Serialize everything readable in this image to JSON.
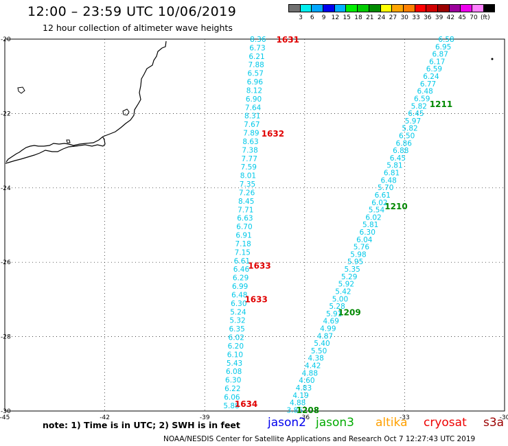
{
  "header": {
    "title": "12:00 – 23:59 UTC 10/06/2019",
    "subtitle": "12 hour collection of altimeter wave heights"
  },
  "color_scale": {
    "colors": [
      "#707070",
      "#00eeee",
      "#00a6ff",
      "#0000ee",
      "#00b0ff",
      "#00ee00",
      "#00cc00",
      "#008b00",
      "#ffff00",
      "#ffa500",
      "#ff8000",
      "#ff0000",
      "#d00000",
      "#9b0000",
      "#9b009b",
      "#ee00ee",
      "#ff80ff",
      "#000000"
    ],
    "labels": [
      "3",
      "6",
      "9",
      "12",
      "15",
      "18",
      "21",
      "24",
      "27",
      "30",
      "33",
      "36",
      "39",
      "42",
      "45",
      "70",
      "(ft)"
    ]
  },
  "axes": {
    "x_ticks": [
      "-45",
      "-42",
      "-39",
      "-36",
      "-33",
      "-30"
    ],
    "y_ticks": [
      "-20",
      "-22",
      "-24",
      "-26",
      "-28",
      "-30"
    ],
    "lon_range": [
      -45,
      -30
    ],
    "lat_range": [
      -30,
      -20
    ]
  },
  "tracks": {
    "west": {
      "color": "#00c8e8",
      "values": [
        "8.36",
        "6.73",
        "6.21",
        "7.88",
        "6.57",
        "6.96",
        "8.12",
        "6.90",
        "7.64",
        "8.31",
        "7.67",
        "7.89",
        "8.63",
        "7.38",
        "7.77",
        "7.59",
        "8.01",
        "7.35",
        "7.26",
        "8.45",
        "7.71",
        "6.63",
        "6.70",
        "6.91",
        "7.18",
        "7.15",
        "6.61",
        "6.46",
        "6.29",
        "6.99",
        "6.48",
        "6.30",
        "5.24",
        "5.32",
        "6.35",
        "6.02",
        "6.20",
        "6.10",
        "5.43",
        "6.08",
        "6.30",
        "6.22",
        "6.06",
        "5.88"
      ],
      "lat_start": -20.0,
      "lat_end": -29.85,
      "lon_start": -37.4,
      "lon_end": -38.2
    },
    "east": {
      "color": "#00c8e8",
      "values": [
        "6.58",
        "6.95",
        "6.87",
        "6.17",
        "6.59",
        "6.24",
        "6.77",
        "6.48",
        "6.59",
        "5.82",
        "6.45",
        "5.97",
        "5.82",
        "6.50",
        "6.86",
        "6.88",
        "6.45",
        "5.81",
        "6.81",
        "6.48",
        "5.70",
        "6.61",
        "6.02",
        "5.54",
        "6.02",
        "5.81",
        "6.30",
        "6.04",
        "5.76",
        "5.98",
        "5.95",
        "5.35",
        "5.29",
        "5.92",
        "5.42",
        "5.00",
        "5.28",
        "5.91",
        "4.69",
        "4.99",
        "4.87",
        "5.40",
        "5.50",
        "4.38",
        "4.42",
        "4.88",
        "4.60",
        "4.83",
        "4.19",
        "4.88",
        "3.86"
      ],
      "lat_start": -20.0,
      "lat_end": -29.97,
      "lon_start": -31.75,
      "lon_end": -36.3
    }
  },
  "time_labels": [
    {
      "text": "1631",
      "color": "#e00000",
      "lon": -36.85,
      "lat": -20.02
    },
    {
      "text": "1632",
      "color": "#e00000",
      "lon": -37.3,
      "lat": -22.55
    },
    {
      "text": "1633",
      "color": "#e00000",
      "lon": -37.7,
      "lat": -26.1
    },
    {
      "text": "1633",
      "color": "#e00000",
      "lon": -37.8,
      "lat": -27.0
    },
    {
      "text": "1634",
      "color": "#e00000",
      "lon": -38.1,
      "lat": -29.82
    },
    {
      "text": "1211",
      "color": "#008800",
      "lon": -32.25,
      "lat": -21.75
    },
    {
      "text": "1210",
      "color": "#008800",
      "lon": -33.6,
      "lat": -24.5
    },
    {
      "text": "1209",
      "color": "#008800",
      "lon": -35.0,
      "lat": -27.35
    },
    {
      "text": "1208",
      "color": "#008800",
      "lon": -36.25,
      "lat": -29.98
    }
  ],
  "footer": {
    "note": "note: 1) Time is in UTC; 2) SWH is in feet",
    "legend": [
      {
        "name": "jason2",
        "color": "#0000ee"
      },
      {
        "name": "jason3",
        "color": "#00aa00"
      },
      {
        "name": "altika",
        "color": "#ffa000"
      },
      {
        "name": "cryosat",
        "color": "#ee0000"
      },
      {
        "name": "s3a",
        "color": "#9b0000"
      }
    ],
    "credit": "NOAA/NESDIS Center for Satellite Applications and Research    Oct  7 12:27:43 UTC 2019"
  }
}
